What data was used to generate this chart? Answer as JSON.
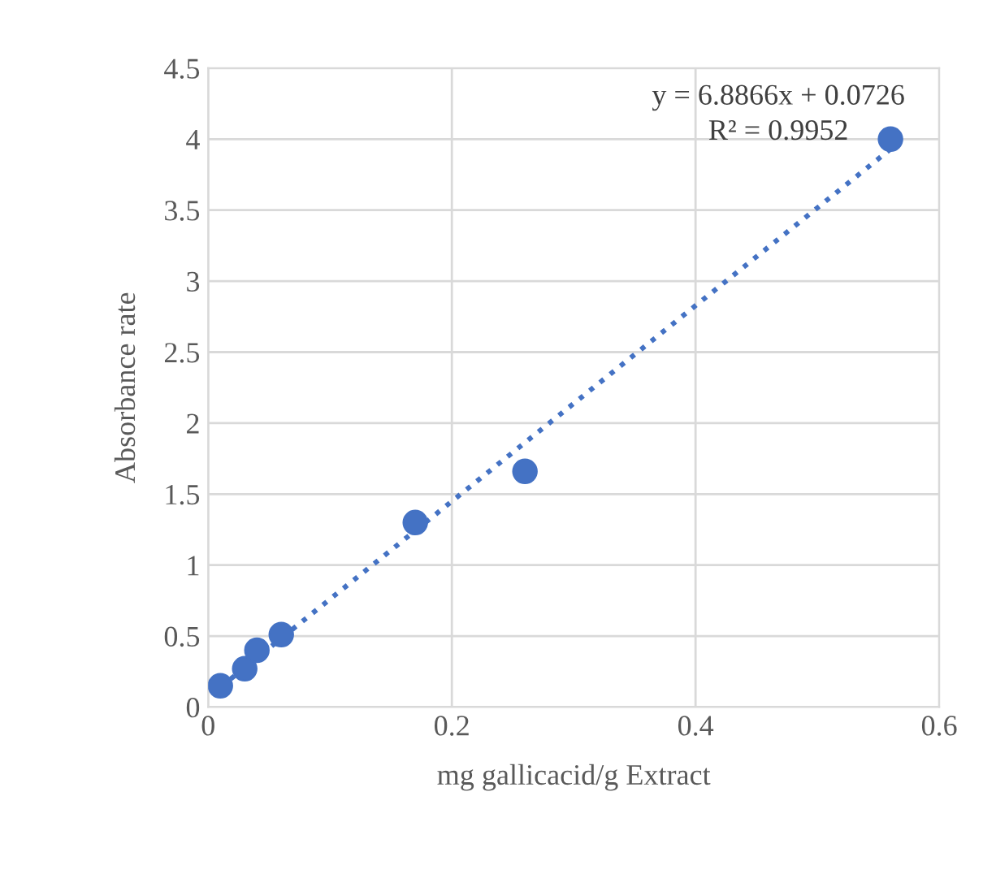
{
  "chart_data": {
    "type": "scatter",
    "xlabel": "mg gallicacid/g Extract",
    "ylabel": "Absorbance rate",
    "xlim": [
      0,
      0.6
    ],
    "xticks": [
      0,
      0.2,
      0.4,
      0.6
    ],
    "ylim": [
      0,
      4.5
    ],
    "yticks": [
      0,
      0.5,
      1,
      1.5,
      2,
      2.5,
      3,
      3.5,
      4,
      4.5
    ],
    "grid": true,
    "marker": "circle",
    "series": [
      {
        "color": "#4472c4",
        "x": [
          0.01,
          0.03,
          0.04,
          0.06,
          0.17,
          0.26,
          0.56
        ],
        "values": [
          0.15,
          0.27,
          0.4,
          0.51,
          1.3,
          1.66,
          4.0
        ]
      },
      {
        "type": "line",
        "color": "#4472c4",
        "line_style": "dotted",
        "marker": "none",
        "x": [
          0.01,
          0.56
        ],
        "values": [
          0.14,
          3.93
        ]
      }
    ],
    "annotations": [
      "y = 6.8866x + 0.0726",
      "R² = 0.9952"
    ]
  }
}
